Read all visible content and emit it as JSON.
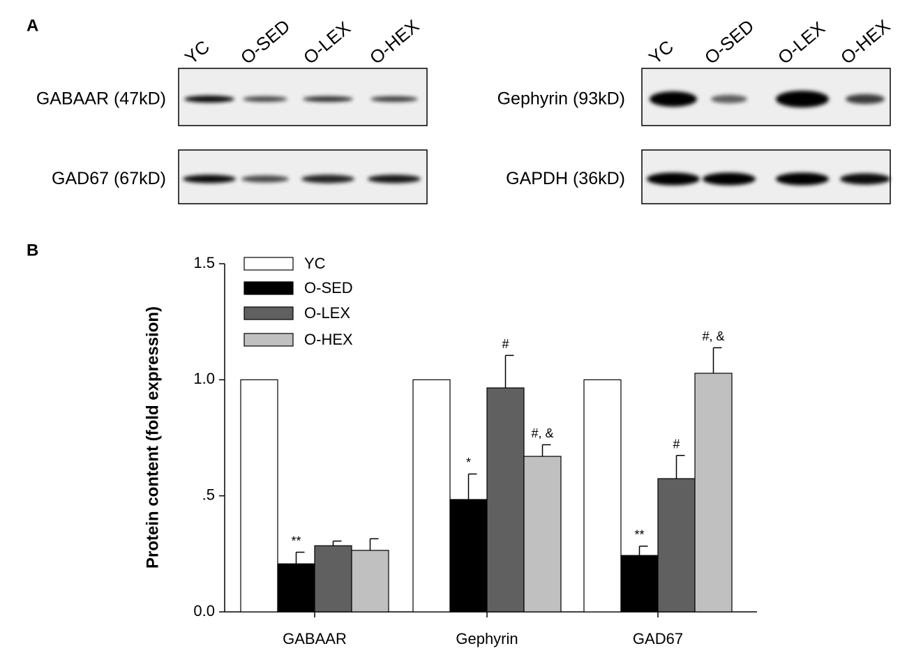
{
  "panel_labels": [
    "A",
    "B"
  ],
  "blots": [
    {
      "lanes": [
        "YC",
        "O-SED",
        "O-LEX",
        "O-HEX"
      ],
      "rows": [
        "GABAAR (47kD)",
        "GAD67 (67kD)"
      ]
    },
    {
      "lanes": [
        "YC",
        "O-SED",
        "O-LEX",
        "O-HEX"
      ],
      "rows": [
        "Gephyrin (93kD)",
        "GAPDH (36kD)"
      ]
    }
  ],
  "chart_data": {
    "type": "bar",
    "y_label": "Protein content (fold expression)",
    "categories": [
      "GABAAR",
      "Gephyrin",
      "GAD67"
    ],
    "series": [
      {
        "name": "YC",
        "color": "#ffffff",
        "values": [
          1.0,
          1.0,
          1.0
        ]
      },
      {
        "name": "O-SED",
        "color": "#000000",
        "values": [
          0.207,
          0.484,
          0.243
        ],
        "errors": [
          0.05,
          0.11,
          0.04
        ],
        "significance": [
          "**",
          "*",
          "**"
        ]
      },
      {
        "name": "O-LEX",
        "color": "#606060",
        "values": [
          0.285,
          0.965,
          0.574
        ],
        "errors": [
          0.02,
          0.14,
          0.1
        ],
        "significance": [
          null,
          "#",
          "#"
        ]
      },
      {
        "name": "O-HEX",
        "color": "#c0c0c0",
        "values": [
          0.265,
          0.67,
          1.028
        ],
        "errors": [
          0.05,
          0.05,
          0.11
        ],
        "significance": [
          null,
          "#, &",
          "#, &"
        ]
      }
    ],
    "ylim": [
      0,
      1.5
    ],
    "yticks": [
      {
        "value": 0,
        "label": "0.0"
      },
      {
        "value": 0.5,
        "label": ".5"
      },
      {
        "value": 1,
        "label": "1.0"
      },
      {
        "value": 1.5,
        "label": "1.5"
      }
    ],
    "legend": "top-left"
  }
}
